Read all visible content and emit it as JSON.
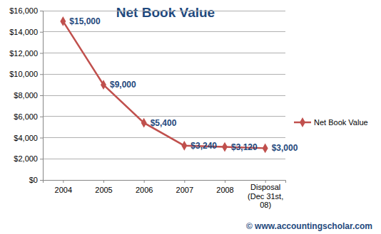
{
  "chart_data": {
    "type": "line",
    "title": "Net Book Value",
    "categories": [
      "2004",
      "2005",
      "2006",
      "2007",
      "2008",
      "Disposal (Dec 31st, 08)"
    ],
    "series": [
      {
        "name": "Net Book Value",
        "color": "#c0504d",
        "marker": "diamond",
        "values": [
          15000,
          9000,
          5400,
          3240,
          3120,
          3000
        ],
        "value_labels": [
          "$15,000",
          "$9,000",
          "$5,400",
          "$3,240",
          "$3,120",
          "$3,000"
        ]
      }
    ],
    "ylim": [
      0,
      16000
    ],
    "yticks": [
      {
        "value": 0,
        "label": "$0"
      },
      {
        "value": 2000,
        "label": "$2,000"
      },
      {
        "value": 4000,
        "label": "$4,000"
      },
      {
        "value": 6000,
        "label": "$6,000"
      },
      {
        "value": 8000,
        "label": "$8,000"
      },
      {
        "value": 10000,
        "label": "$10,000"
      },
      {
        "value": 12000,
        "label": "$12,000"
      },
      {
        "value": 14000,
        "label": "$14,000"
      },
      {
        "value": 16000,
        "label": "$16,000"
      }
    ],
    "grid": true,
    "legend": "right",
    "data_labels": true,
    "annotations": [
      "© www.accountingscholar.com"
    ]
  }
}
